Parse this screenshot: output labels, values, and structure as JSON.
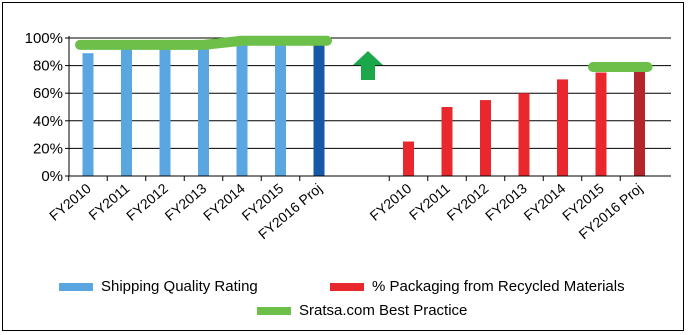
{
  "chart_data": {
    "type": "bar",
    "ylim": [
      0,
      100
    ],
    "yticks": [
      "0%",
      "20%",
      "40%",
      "60%",
      "80%",
      "100%"
    ],
    "y_unit": "%",
    "grid": "horizontal",
    "groups": [
      {
        "series": "Shipping Quality Rating",
        "categories": [
          "FY2010",
          "FY2011",
          "FY2012",
          "FY2013",
          "FY2014",
          "FY2015",
          "FY2016 Proj"
        ],
        "values": [
          89,
          97,
          97,
          97,
          97,
          97,
          97
        ],
        "colors": [
          "#5aa6e0",
          "#5aa6e0",
          "#5aa6e0",
          "#5aa6e0",
          "#5aa6e0",
          "#5aa6e0",
          "#1659a8"
        ],
        "best_practice": {
          "x_from": "FY2010",
          "x_to": "FY2016 Proj",
          "values": [
            95,
            95,
            95,
            95,
            98,
            98,
            98
          ]
        }
      },
      {
        "series": "% Packaging from Recycled Materials",
        "categories": [
          "FY2010",
          "FY2011",
          "FY2012",
          "FY2013",
          "FY2014",
          "FY2015",
          "FY2016 Proj"
        ],
        "values": [
          25,
          50,
          55,
          60,
          70,
          75,
          77
        ],
        "colors": [
          "#e8282d",
          "#e8282d",
          "#e8282d",
          "#e8282d",
          "#e8282d",
          "#e8282d",
          "#b4262b"
        ],
        "best_practice": {
          "x_from": "FY2015",
          "x_to": "FY2016 Proj",
          "values": [
            79,
            79
          ]
        }
      }
    ],
    "legend": {
      "placement": "bottom",
      "entries": [
        {
          "label": "Shipping Quality Rating",
          "color": "#5aa6e0"
        },
        {
          "label": "% Packaging from Recycled Materials",
          "color": "#e8282d"
        },
        {
          "label": "Sratsa.com Best Practice",
          "color": "#6cc04a"
        }
      ]
    },
    "annotation": {
      "shape": "up-arrow",
      "color": "#1aa84a"
    }
  }
}
